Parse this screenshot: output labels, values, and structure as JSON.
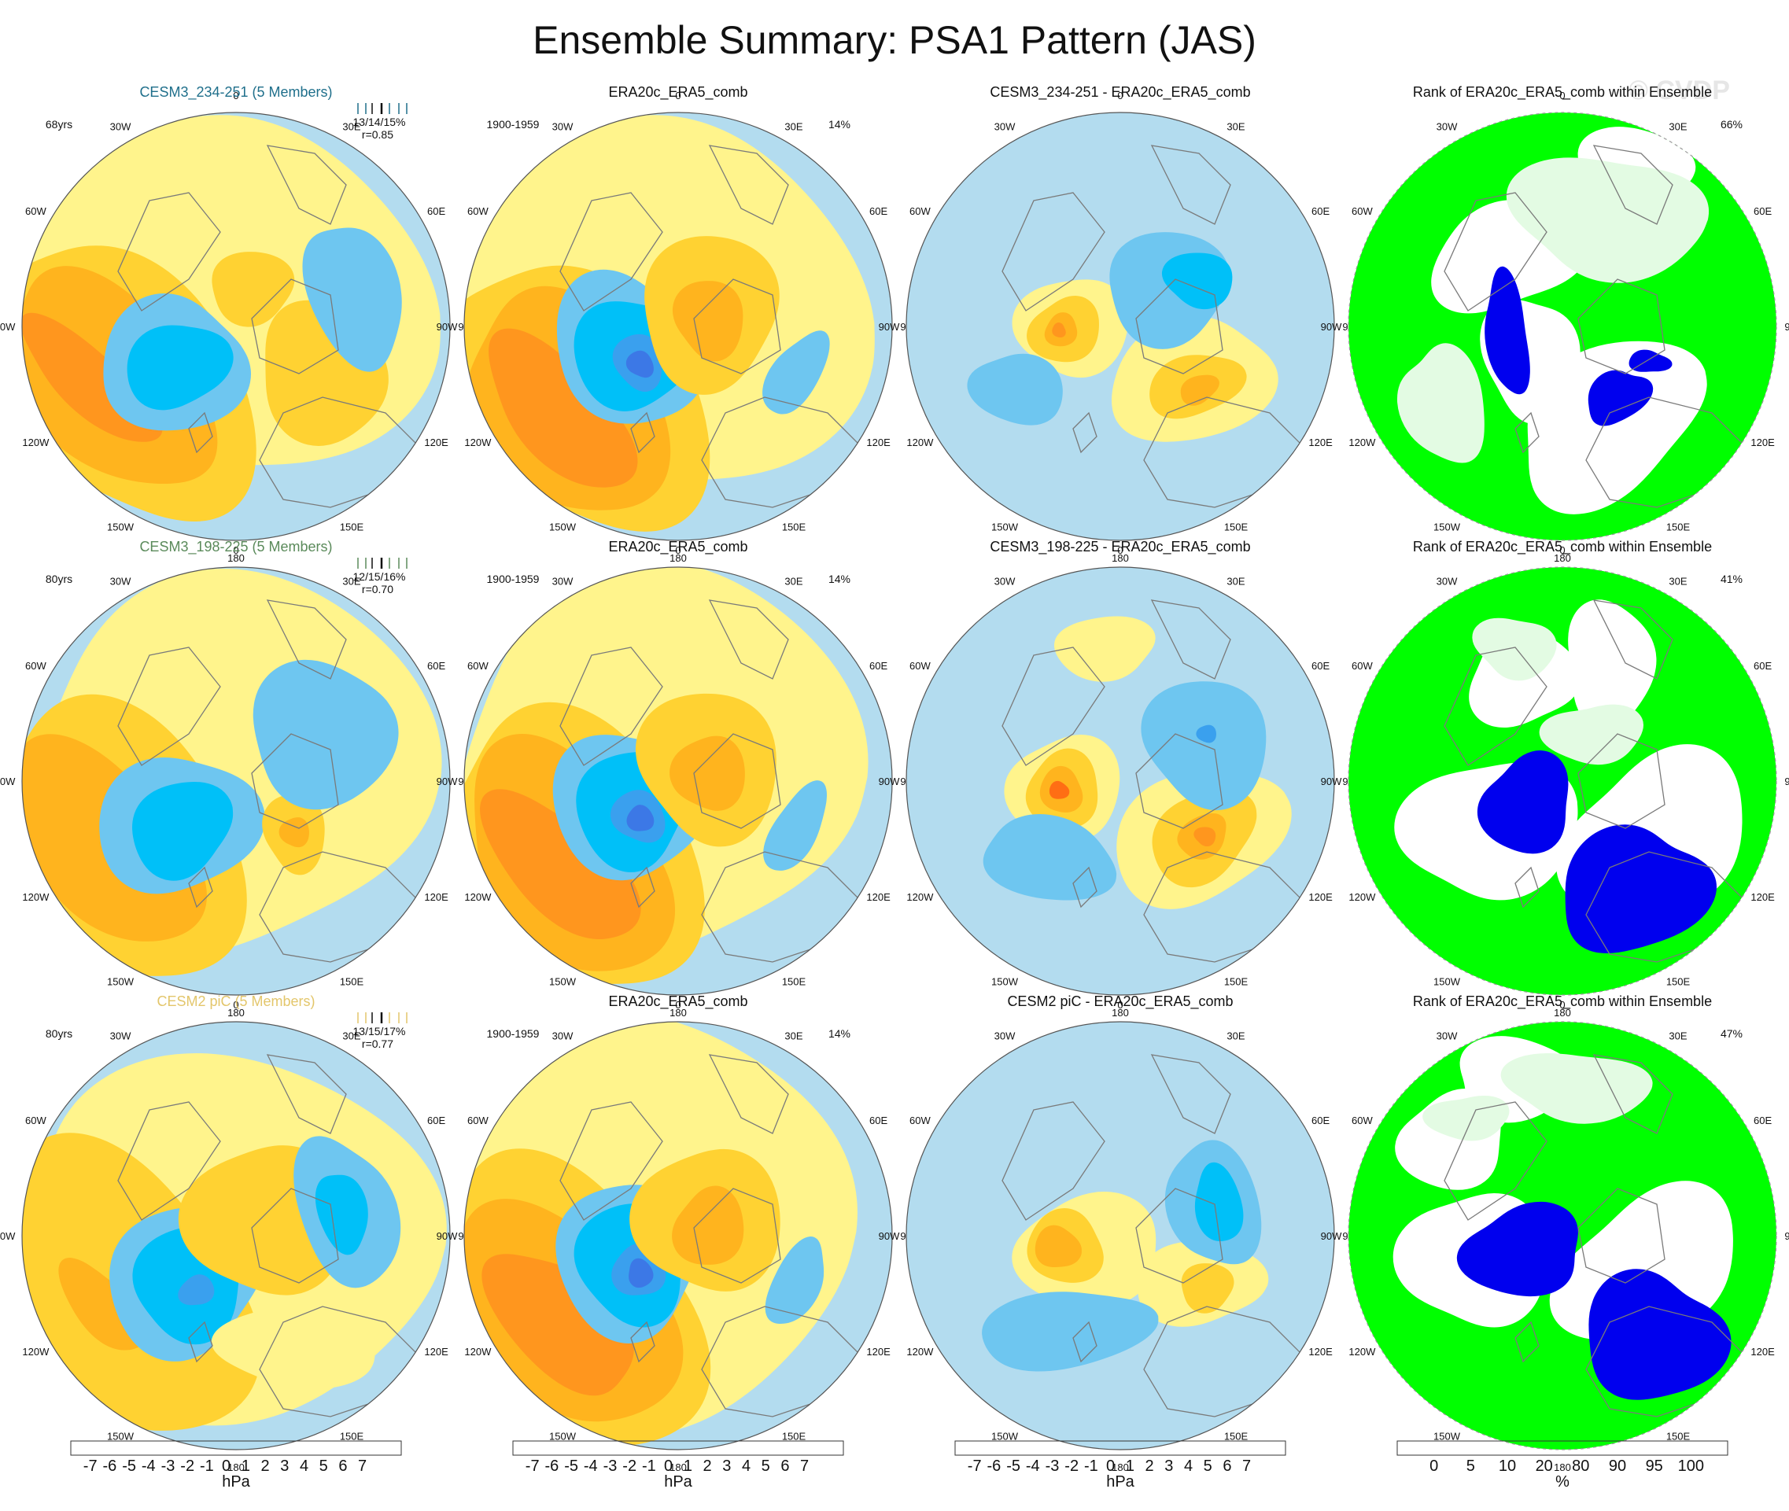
{
  "title": "Ensemble Summary: PSA1 Pattern (JAS)",
  "watermark": "© CVDP",
  "colors": {
    "ocean": "#b3dcef",
    "land_outline": "#7a7a7a",
    "model_1": "#1f6f8b",
    "model_2": "#5a8a5a",
    "model_3": "#e3c66b",
    "rank_green": "#00ff00",
    "rank_lightgreen": "#e3fbe3",
    "rank_blue": "#0000ee"
  },
  "longitude_labels": [
    "0",
    "30E",
    "60E",
    "90E",
    "120E",
    "150E",
    "180",
    "150W",
    "120W",
    "90W",
    "60W",
    "30W"
  ],
  "rows": [
    {
      "model_title": "CESM3_234-251 (5 Members)",
      "model_color": "#1f6f8b",
      "years": "68yrs",
      "pct_stats": "13/14/15%",
      "corr": "r=0.85",
      "obs_title": "ERA20c_ERA5_comb",
      "obs_period": "1900-1959",
      "obs_pct": "14%",
      "diff_title": "CESM3_234-251 - ERA20c_ERA5_comb",
      "rank_title": "Rank of ERA20c_ERA5_comb within Ensemble",
      "rank_pct": "66%"
    },
    {
      "model_title": "CESM3_198-225 (5 Members)",
      "model_color": "#5a8a5a",
      "years": "80yrs",
      "pct_stats": "12/15/16%",
      "corr": "r=0.70",
      "obs_title": "ERA20c_ERA5_comb",
      "obs_period": "1900-1959",
      "obs_pct": "14%",
      "diff_title": "CESM3_198-225 - ERA20c_ERA5_comb",
      "rank_title": "Rank of ERA20c_ERA5_comb within Ensemble",
      "rank_pct": "41%"
    },
    {
      "model_title": "CESM2 piC (5 Members)",
      "model_color": "#e3c66b",
      "years": "80yrs",
      "pct_stats": "13/15/17%",
      "corr": "r=0.77",
      "obs_title": "ERA20c_ERA5_comb",
      "obs_period": "1900-1959",
      "obs_pct": "14%",
      "diff_title": "CESM2 piC - ERA20c_ERA5_comb",
      "rank_title": "Rank of ERA20c_ERA5_comb within Ensemble",
      "rank_pct": "47%"
    }
  ],
  "colorbar_hpa": {
    "labels": [
      "-7",
      "-6",
      "-5",
      "-4",
      "-3",
      "-2",
      "-1",
      "0",
      "1",
      "2",
      "3",
      "4",
      "5",
      "6",
      "7"
    ],
    "colors": [
      "#8b2be2",
      "#1414f0",
      "#2a50e6",
      "#3c78e6",
      "#3aa0ee",
      "#00c0f8",
      "#6ec6f0",
      "#b3dcef",
      "#fff48c",
      "#ffd232",
      "#ffb41e",
      "#ff961e",
      "#ff6e14",
      "#ff3c0a",
      "#ee1010",
      "#c81e1e",
      "#ffaaaa"
    ],
    "unit": "hPa"
  },
  "colorbar_rank": {
    "labels": [
      "0",
      "5",
      "10",
      "20",
      "80",
      "90",
      "95",
      "100"
    ],
    "colors": [
      "#0000ee",
      "#6a6af0",
      "#b4b4f4",
      "#e6e6fa",
      "#ffffff",
      "#e3fbe3",
      "#b4f8b4",
      "#7cf27c",
      "#00ff00"
    ],
    "unit": "%"
  },
  "chart_data": {
    "type": "heatmap",
    "title": "Ensemble Summary: PSA1 Pattern (JAS)",
    "projection": "south polar stereographic",
    "variable": "sea level pressure PSA1 pattern",
    "units": "hPa",
    "contour_levels": [
      -7,
      -6,
      -5,
      -4,
      -3,
      -2,
      -1,
      0,
      1,
      2,
      3,
      4,
      5,
      6,
      7
    ],
    "rank_levels_percent": [
      0,
      5,
      10,
      20,
      80,
      90,
      95,
      100
    ],
    "panels": [
      {
        "row": 1,
        "column": "ensemble mean",
        "title": "CESM3_234-251 (5 Members)",
        "years": 68,
        "pct_variance": [
          13,
          14,
          15
        ],
        "pattern_corr": 0.85
      },
      {
        "row": 1,
        "column": "observations",
        "title": "ERA20c_ERA5_comb",
        "period": "1900-1959",
        "pct_variance": 14
      },
      {
        "row": 1,
        "column": "difference",
        "title": "CESM3_234-251 - ERA20c_ERA5_comb"
      },
      {
        "row": 1,
        "column": "rank",
        "title": "Rank of ERA20c_ERA5_comb within Ensemble",
        "pct_area": 66
      },
      {
        "row": 2,
        "column": "ensemble mean",
        "title": "CESM3_198-225 (5 Members)",
        "years": 80,
        "pct_variance": [
          12,
          15,
          16
        ],
        "pattern_corr": 0.7
      },
      {
        "row": 2,
        "column": "observations",
        "title": "ERA20c_ERA5_comb",
        "period": "1900-1959",
        "pct_variance": 14
      },
      {
        "row": 2,
        "column": "difference",
        "title": "CESM3_198-225 - ERA20c_ERA5_comb"
      },
      {
        "row": 2,
        "column": "rank",
        "title": "Rank of ERA20c_ERA5_comb within Ensemble",
        "pct_area": 41
      },
      {
        "row": 3,
        "column": "ensemble mean",
        "title": "CESM2 piC (5 Members)",
        "years": 80,
        "pct_variance": [
          13,
          15,
          17
        ],
        "pattern_corr": 0.77
      },
      {
        "row": 3,
        "column": "observations",
        "title": "ERA20c_ERA5_comb",
        "period": "1900-1959",
        "pct_variance": 14
      },
      {
        "row": 3,
        "column": "difference",
        "title": "CESM2 piC - ERA20c_ERA5_comb"
      },
      {
        "row": 3,
        "column": "rank",
        "title": "Rank of ERA20c_ERA5_comb within Ensemble",
        "pct_area": 47
      }
    ]
  }
}
